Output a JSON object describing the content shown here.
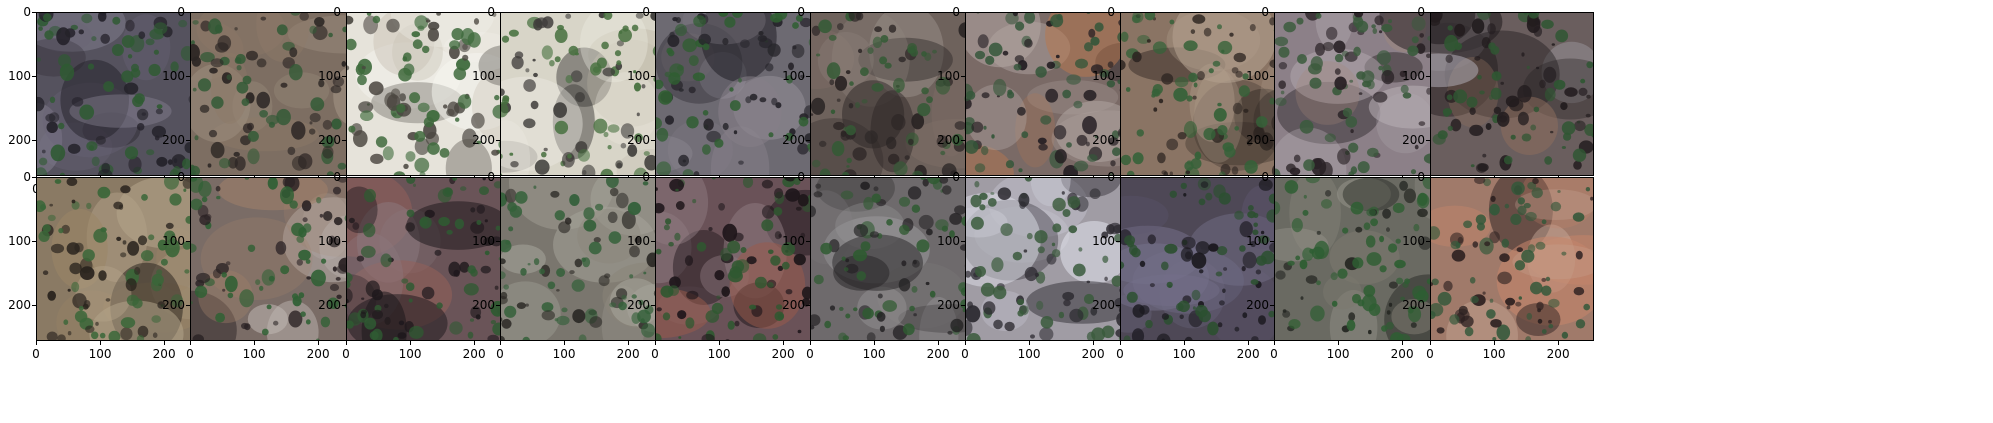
{
  "figure": {
    "rows": 2,
    "cols": 10,
    "axis_ticks": {
      "x": [
        "0",
        "100",
        "200"
      ],
      "y": [
        "0",
        "100",
        "200"
      ],
      "x_values": [
        0,
        100,
        200
      ],
      "y_values": [
        0,
        100,
        200
      ],
      "image_size": 256
    },
    "panels": [
      {
        "base": "#55525e",
        "light": "#8a8696",
        "veg": "#2f5a33",
        "dark": "#24222a",
        "accent": "#6a6476"
      },
      {
        "base": "#7d6e62",
        "light": "#a39484",
        "veg": "#325a36",
        "dark": "#2c2624",
        "accent": "#8e7a68"
      },
      {
        "base": "#e6e3da",
        "light": "#f6f5f0",
        "veg": "#3e6a3c",
        "dark": "#4a4640",
        "accent": "#c9c2b4"
      },
      {
        "base": "#d8d5c8",
        "light": "#efede4",
        "veg": "#46703e",
        "dark": "#3e3c3a",
        "accent": "#bdb6a6"
      },
      {
        "base": "#6d6a72",
        "light": "#9a96a0",
        "veg": "#2f5e31",
        "dark": "#26242a",
        "accent": "#857f88"
      },
      {
        "base": "#6e625c",
        "light": "#958a84",
        "veg": "#345a35",
        "dark": "#2a2424",
        "accent": "#7f6e66"
      },
      {
        "base": "#7a6a66",
        "light": "#b2a6a2",
        "veg": "#34563a",
        "dark": "#241e22",
        "accent": "#b9774e"
      },
      {
        "base": "#8a7464",
        "light": "#b2a08e",
        "veg": "#356238",
        "dark": "#2c2420",
        "accent": "#b0805a"
      },
      {
        "base": "#8c8088",
        "light": "#b6aeb4",
        "veg": "#3a5a3c",
        "dark": "#2a2226",
        "accent": "#a68a7a"
      },
      {
        "base": "#6a5e5e",
        "light": "#a8a4ac",
        "veg": "#2f5632",
        "dark": "#221c1e",
        "accent": "#8e6e5c"
      },
      {
        "base": "#8a7a64",
        "light": "#b4a48a",
        "veg": "#3a6638",
        "dark": "#2a241e",
        "accent": "#9c8566"
      },
      {
        "base": "#7a6c66",
        "light": "#c0b8b4",
        "veg": "#2f6034",
        "dark": "#2a2224",
        "accent": "#a0806a"
      },
      {
        "base": "#6a5458",
        "light": "#8c7a80",
        "veg": "#2f5a32",
        "dark": "#1e181c",
        "accent": "#94605a"
      },
      {
        "base": "#7a766e",
        "light": "#a6a49a",
        "veg": "#34603a",
        "dark": "#2a2824",
        "accent": "#8a8478"
      },
      {
        "base": "#6a5258",
        "light": "#8e7a80",
        "veg": "#2f5830",
        "dark": "#1e161a",
        "accent": "#9a5a4a"
      },
      {
        "base": "#6e6a6c",
        "light": "#9c9a9c",
        "veg": "#2f5a31",
        "dark": "#242224",
        "accent": "#7e7a7c"
      },
      {
        "base": "#a09ca4",
        "light": "#e4e6ee",
        "veg": "#3a5a3c",
        "dark": "#2c2a30",
        "accent": "#c8c8d2"
      },
      {
        "base": "#4e4856",
        "light": "#74708a",
        "veg": "#2c5030",
        "dark": "#1a181e",
        "accent": "#5e5670"
      },
      {
        "base": "#6a6a62",
        "light": "#96948a",
        "veg": "#2e5e32",
        "dark": "#222420",
        "accent": "#7c7a6e"
      },
      {
        "base": "#a07a6a",
        "light": "#c8aa98",
        "veg": "#34583a",
        "dark": "#2c2020",
        "accent": "#c4846a"
      }
    ]
  }
}
